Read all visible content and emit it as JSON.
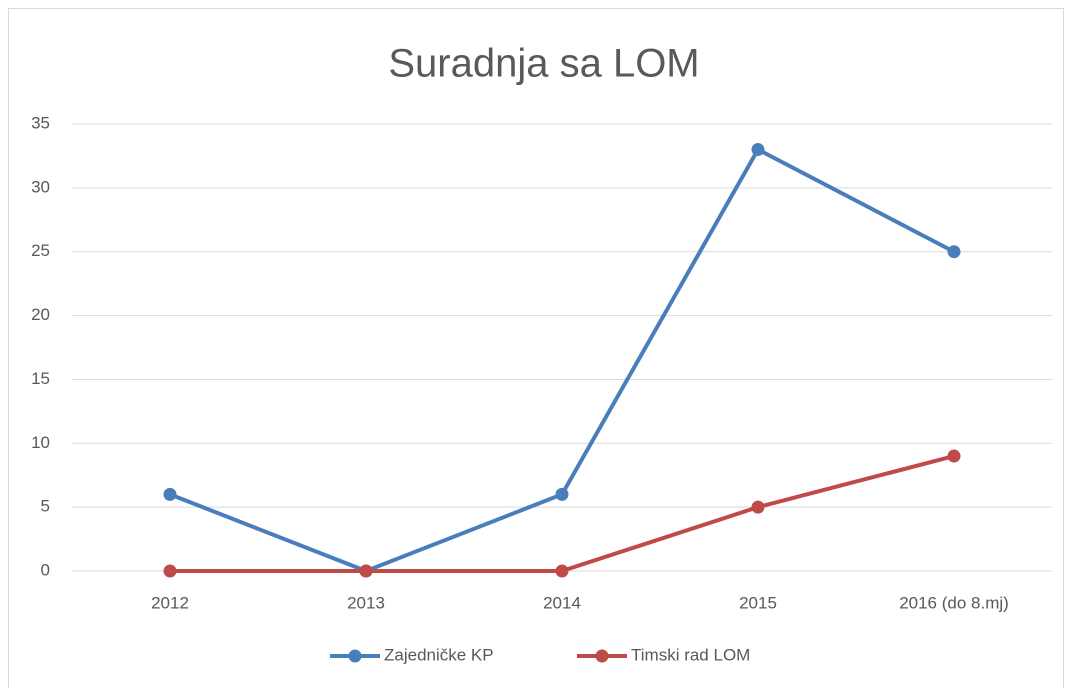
{
  "chart_data": {
    "type": "line",
    "title": "Suradnja sa LOM",
    "categories": [
      "2012",
      "2013",
      "2014",
      "2015",
      "2016 (do 8.mj)"
    ],
    "series": [
      {
        "name": "Zajedničke KP",
        "color": "#4a7ebb",
        "values": [
          6,
          0,
          6,
          33,
          25
        ]
      },
      {
        "name": "Timski rad LOM",
        "color": "#be4b48",
        "values": [
          0,
          0,
          0,
          5,
          9
        ]
      }
    ],
    "ylim": [
      0,
      35
    ],
    "yticks": [
      0,
      5,
      10,
      15,
      20,
      25,
      30,
      35
    ],
    "grid": true,
    "legend": "bottom"
  }
}
